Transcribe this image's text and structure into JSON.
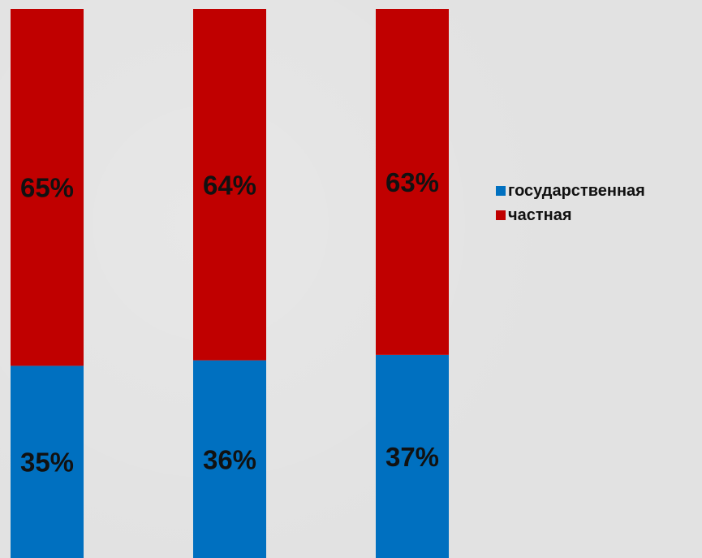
{
  "chart_data": {
    "type": "bar",
    "stacked": true,
    "categories": [
      "",
      "",
      ""
    ],
    "series": [
      {
        "name": "государственная",
        "values": [
          35,
          36,
          37
        ],
        "labels": [
          "35%",
          "36%",
          "37%"
        ],
        "color": "#0070c0"
      },
      {
        "name": "частная",
        "values": [
          65,
          64,
          63
        ],
        "labels": [
          "65%",
          "64%",
          "63%"
        ],
        "color": "#c00000"
      }
    ],
    "ylim": [
      0,
      100
    ],
    "value_unit": "%",
    "grid": false,
    "legend_position": "right",
    "background_color": "#e2e2e2",
    "label_color": "#111111"
  }
}
